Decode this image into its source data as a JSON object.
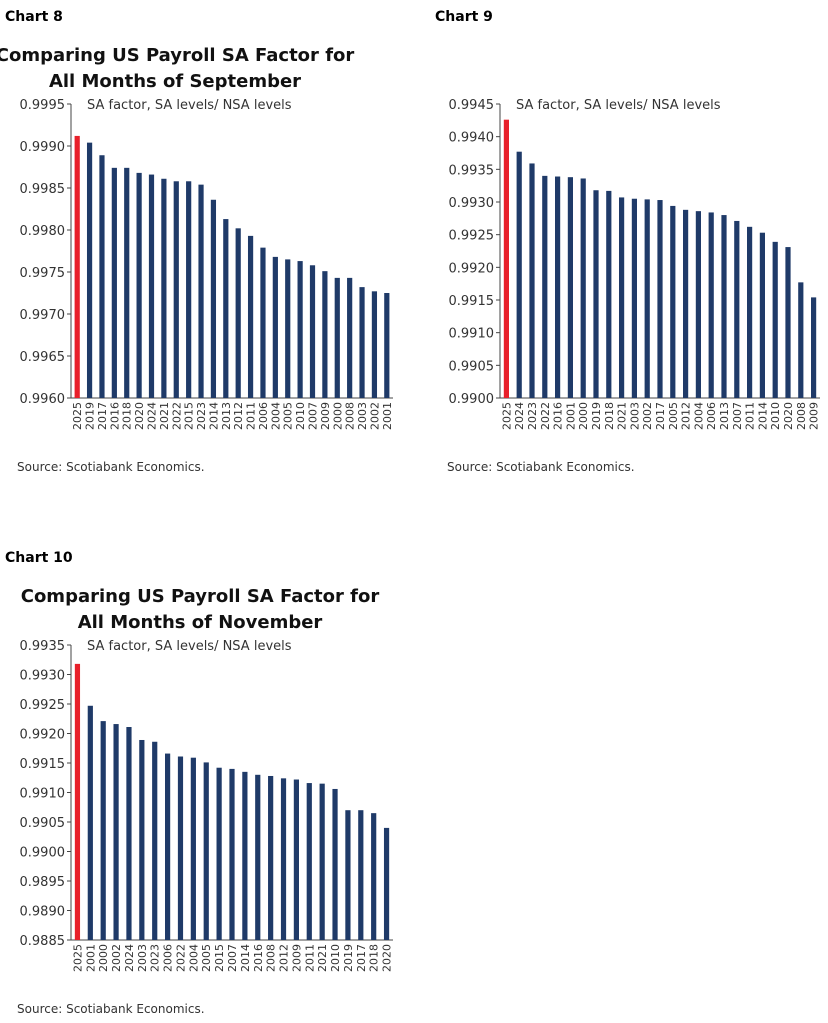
{
  "chart_data": [
    {
      "type": "bar",
      "chart_label": "Chart 8",
      "title": [
        "Comparing US Payroll SA Factor for",
        "All Months of September"
      ],
      "subtitle": "SA factor, SA levels/ NSA levels",
      "source": "Source: Scotiabank Economics.",
      "categories": [
        "2025",
        "2019",
        "2017",
        "2016",
        "2018",
        "2020",
        "2024",
        "2021",
        "2022",
        "2015",
        "2023",
        "2014",
        "2013",
        "2012",
        "2011",
        "2006",
        "2004",
        "2005",
        "2010",
        "2007",
        "2009",
        "2000",
        "2008",
        "2003",
        "2002",
        "2001"
      ],
      "values": [
        0.99912,
        0.99904,
        0.99889,
        0.99874,
        0.99874,
        0.99868,
        0.99866,
        0.99861,
        0.99858,
        0.99858,
        0.99854,
        0.99836,
        0.99813,
        0.99802,
        0.99793,
        0.99779,
        0.99768,
        0.99765,
        0.99763,
        0.99758,
        0.99751,
        0.99743,
        0.99743,
        0.99732,
        0.99727,
        0.99725
      ],
      "colors": [
        "#e8202a",
        "#1f3a68",
        "#1f3a68",
        "#1f3a68",
        "#1f3a68",
        "#1f3a68",
        "#1f3a68",
        "#1f3a68",
        "#1f3a68",
        "#1f3a68",
        "#1f3a68",
        "#1f3a68",
        "#1f3a68",
        "#1f3a68",
        "#1f3a68",
        "#1f3a68",
        "#1f3a68",
        "#1f3a68",
        "#1f3a68",
        "#1f3a68",
        "#1f3a68",
        "#1f3a68",
        "#1f3a68",
        "#1f3a68",
        "#1f3a68",
        "#1f3a68"
      ],
      "ylim": [
        0.996,
        0.9995
      ],
      "yticks": [
        {
          "value": 0.996,
          "label": "0.9960"
        },
        0.9965,
        {
          "value": 0.997,
          "label": "0.9970"
        },
        0.9975,
        {
          "value": 0.998,
          "label": "0.9980"
        },
        0.9985,
        {
          "value": 0.999,
          "label": "0.9990"
        },
        0.9995
      ]
    },
    {
      "type": "bar",
      "chart_label": "Chart 9",
      "title": [
        "Comparing US Payroll SA Factor for",
        "All Months of October"
      ],
      "subtitle": "SA factor, SA levels/ NSA levels",
      "source": "Source: Scotiabank Economics.",
      "categories": [
        "2025",
        "2024",
        "2023",
        "2022",
        "2016",
        "2001",
        "2000",
        "2019",
        "2018",
        "2021",
        "2003",
        "2002",
        "2017",
        "2005",
        "2012",
        "2004",
        "2006",
        "2013",
        "2007",
        "2011",
        "2014",
        "2010",
        "2020",
        "2008",
        "2009"
      ],
      "values": [
        0.99426,
        0.99377,
        0.99359,
        0.9934,
        0.99339,
        0.99338,
        0.99336,
        0.99318,
        0.99317,
        0.99307,
        0.99305,
        0.99304,
        0.99303,
        0.99294,
        0.99288,
        0.99286,
        0.99284,
        0.9928,
        0.99271,
        0.99262,
        0.99253,
        0.99239,
        0.99231,
        0.99177,
        0.99154
      ],
      "colors": [
        "#e8202a",
        "#1f3a68",
        "#1f3a68",
        "#1f3a68",
        "#1f3a68",
        "#1f3a68",
        "#1f3a68",
        "#1f3a68",
        "#1f3a68",
        "#1f3a68",
        "#1f3a68",
        "#1f3a68",
        "#1f3a68",
        "#1f3a68",
        "#1f3a68",
        "#1f3a68",
        "#1f3a68",
        "#1f3a68",
        "#1f3a68",
        "#1f3a68",
        "#1f3a68",
        "#1f3a68",
        "#1f3a68",
        "#1f3a68",
        "#1f3a68"
      ],
      "ylim": [
        0.99,
        0.9945
      ],
      "yticks": [
        {
          "value": 0.99,
          "label": "0.9900"
        },
        0.9905,
        {
          "value": 0.991,
          "label": "0.9910"
        },
        0.9915,
        {
          "value": 0.992,
          "label": "0.9920"
        },
        0.9925,
        {
          "value": 0.993,
          "label": "0.9930"
        },
        0.9935,
        {
          "value": 0.994,
          "label": "0.9940"
        },
        0.9945
      ]
    },
    {
      "type": "bar",
      "chart_label": "Chart 10",
      "title": [
        "Comparing US Payroll SA Factor for",
        "All Months of November"
      ],
      "subtitle": "SA factor, SA levels/ NSA levels",
      "source": "Source: Scotiabank Economics.",
      "categories": [
        "2025",
        "2001",
        "2000",
        "2002",
        "2024",
        "2003",
        "2023",
        "2006",
        "2022",
        "2004",
        "2005",
        "2015",
        "2007",
        "2014",
        "2016",
        "2008",
        "2012",
        "2009",
        "2011",
        "2021",
        "2010",
        "2019",
        "2017",
        "2018",
        "2020"
      ],
      "values": [
        0.99318,
        0.99247,
        0.99221,
        0.99216,
        0.99211,
        0.99189,
        0.99186,
        0.99166,
        0.99161,
        0.99159,
        0.99151,
        0.99142,
        0.9914,
        0.99135,
        0.9913,
        0.99128,
        0.99124,
        0.99122,
        0.99116,
        0.99115,
        0.99106,
        0.9907,
        0.9907,
        0.99065,
        0.9904
      ],
      "colors": [
        "#e8202a",
        "#1f3a68",
        "#1f3a68",
        "#1f3a68",
        "#1f3a68",
        "#1f3a68",
        "#1f3a68",
        "#1f3a68",
        "#1f3a68",
        "#1f3a68",
        "#1f3a68",
        "#1f3a68",
        "#1f3a68",
        "#1f3a68",
        "#1f3a68",
        "#1f3a68",
        "#1f3a68",
        "#1f3a68",
        "#1f3a68",
        "#1f3a68",
        "#1f3a68",
        "#1f3a68",
        "#1f3a68",
        "#1f3a68",
        "#1f3a68"
      ],
      "ylim": [
        0.9885,
        0.9935
      ],
      "yticks": [
        {
          "value": 0.9885,
          "label": "0.9885"
        },
        {
          "value": 0.989,
          "label": "0.9890"
        },
        0.9895,
        {
          "value": 0.99,
          "label": "0.9900"
        },
        0.9905,
        {
          "value": 0.991,
          "label": "0.9910"
        },
        0.9915,
        {
          "value": 0.992,
          "label": "0.9920"
        },
        0.9925,
        {
          "value": 0.993,
          "label": "0.9930"
        },
        0.9935
      ]
    }
  ]
}
